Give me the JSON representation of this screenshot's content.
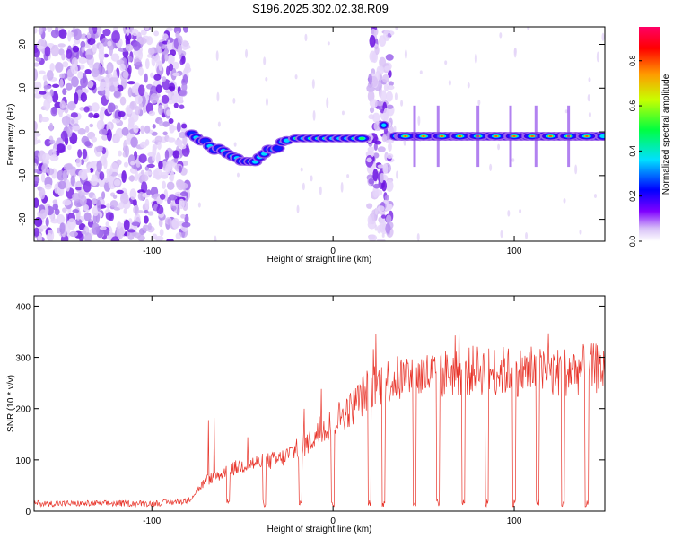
{
  "title": "S196.2025.302.02.38.R09",
  "chart_data": [
    {
      "type": "heatmap",
      "name": "spectrogram",
      "xlabel": "Height of straight line (km)",
      "ylabel": "Frequency (Hz)",
      "xlim": [
        -165,
        150
      ],
      "ylim": [
        -25,
        24
      ],
      "xticks": [
        -100,
        0,
        100
      ],
      "yticks": [
        -20,
        -10,
        0,
        10,
        20
      ],
      "colorbar": {
        "label": "Normalized spectral amplitude",
        "range": [
          0,
          0.95
        ],
        "ticks": [
          0.0,
          0.2,
          0.4,
          0.6,
          0.8
        ]
      },
      "features": [
        {
          "x_range": [
            -165,
            -80
          ],
          "description_value": "broadband noise"
        },
        {
          "x_range": [
            -78,
            -25
          ],
          "frequency_trend": [
            [
              -78,
              0
            ],
            [
              -65,
              -4
            ],
            [
              -45,
              -7
            ],
            [
              -38,
              -5
            ],
            [
              -25,
              -2
            ]
          ]
        },
        {
          "x_range": [
            -20,
            18
          ],
          "frequency": -1.5
        },
        {
          "x_range": [
            20,
            32
          ],
          "description_value": "broadband noise"
        },
        {
          "x_range": [
            35,
            150
          ],
          "frequency": -1
        }
      ]
    },
    {
      "type": "line",
      "name": "snr",
      "xlabel": "Height of straight line (km)",
      "ylabel": "SNR (10 * v/v)",
      "xlim": [
        -165,
        150
      ],
      "ylim": [
        0,
        420
      ],
      "xticks": [
        -100,
        0,
        100
      ],
      "yticks": [
        0,
        100,
        200,
        300,
        400
      ],
      "color": "#e8342a",
      "envelope": [
        [
          -165,
          15
        ],
        [
          -100,
          15
        ],
        [
          -80,
          20
        ],
        [
          -70,
          60
        ],
        [
          -50,
          90
        ],
        [
          -30,
          100
        ],
        [
          -15,
          130
        ],
        [
          0,
          175
        ],
        [
          10,
          200
        ],
        [
          20,
          240
        ],
        [
          30,
          255
        ],
        [
          50,
          265
        ],
        [
          80,
          275
        ],
        [
          120,
          270
        ],
        [
          150,
          280
        ]
      ],
      "dropouts_x": [
        -58,
        -38,
        -18,
        0,
        20,
        28,
        45,
        58,
        72,
        85,
        100,
        113,
        127,
        140
      ]
    }
  ]
}
